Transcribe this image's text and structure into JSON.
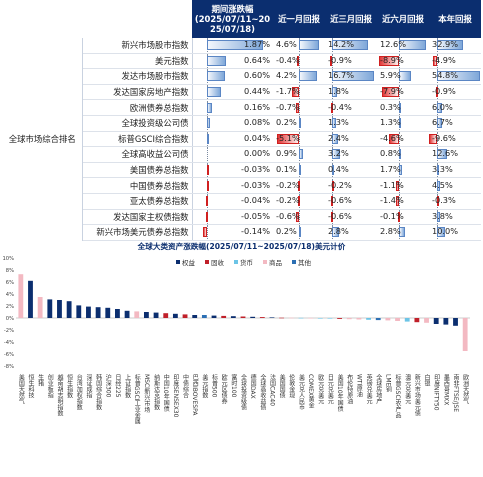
{
  "table": {
    "headers": {
      "period": "期间涨跌幅\n(2025/07/11~20\n25/07/18)",
      "m1": "近一月回报",
      "m3": "近三月回报",
      "m6": "近六月回报",
      "ytd": "本年回报"
    },
    "group_label": "全球市场综合排名",
    "rows": [
      {
        "name": "新兴市场股市指数",
        "period": "1.87%",
        "m1": "4.6%",
        "m3": "14.2%",
        "m6": "12.6%",
        "ytd": "32.9%"
      },
      {
        "name": "美元指数",
        "period": "0.64%",
        "m1": "-0.4%",
        "m3": "-0.9%",
        "m6": "-8.9%",
        "ytd": "-4.9%"
      },
      {
        "name": "发达市场股市指数",
        "period": "0.60%",
        "m1": "4.2%",
        "m3": "16.7%",
        "m6": "5.9%",
        "ytd": "54.8%"
      },
      {
        "name": "发达国家房地产指数",
        "period": "0.44%",
        "m1": "-1.7%",
        "m3": "1.8%",
        "m6": "-7.9%",
        "ytd": "-0.9%"
      },
      {
        "name": "欧洲债券总指数",
        "period": "0.16%",
        "m1": "-0.7%",
        "m3": "-0.4%",
        "m6": "0.3%",
        "ytd": "6.0%"
      },
      {
        "name": "全球投资级公司债",
        "period": "0.08%",
        "m1": "0.2%",
        "m3": "1.3%",
        "m6": "1.3%",
        "ytd": "6.7%"
      },
      {
        "name": "标普GSCI综合指数",
        "period": "0.04%",
        "m1": "-5.1%",
        "m3": "2.4%",
        "m6": "-4.6%",
        "ytd": "-9.6%"
      },
      {
        "name": "全球高收益公司债",
        "period": "0.00%",
        "m1": "0.9%",
        "m3": "3.2%",
        "m6": "0.8%",
        "ytd": "12.6%"
      },
      {
        "name": "美国债券总指数",
        "period": "-0.03%",
        "m1": "0.1%",
        "m3": "0.4%",
        "m6": "1.7%",
        "ytd": "3.3%"
      },
      {
        "name": "中国债券总指数",
        "period": "-0.03%",
        "m1": "-0.2%",
        "m3": "-0.2%",
        "m6": "-1.1%",
        "ytd": "4.5%"
      },
      {
        "name": "亚太债券总指数",
        "period": "-0.04%",
        "m1": "-0.2%",
        "m3": "-0.6%",
        "m6": "-1.4%",
        "ytd": "-0.3%"
      },
      {
        "name": "发达国家主权债指数",
        "period": "-0.05%",
        "m1": "-0.6%",
        "m3": "-0.6%",
        "m6": "-0.1%",
        "ytd": "3.8%"
      },
      {
        "name": "新兴市场美元债券总指数",
        "period": "-0.14%",
        "m1": "0.2%",
        "m3": "2.8%",
        "m6": "2.8%",
        "ytd": "10.0%"
      }
    ]
  },
  "chart_data": {
    "type": "bar",
    "title": "全球大类资产涨跌幅(2025/07/11~2025/07/18)美元计价",
    "ylim": [
      -8,
      10
    ],
    "yticks": [
      "10%",
      "8%",
      "6%",
      "4%",
      "2%",
      "0%",
      "-2%",
      "-4%",
      "-6%",
      "-8%"
    ],
    "legend": [
      {
        "name": "权益",
        "color": "#0b2e6f"
      },
      {
        "name": "固收",
        "color": "#c0202a"
      },
      {
        "name": "货币",
        "color": "#6cc4e6"
      },
      {
        "name": "商品",
        "color": "#f3b9c2"
      },
      {
        "name": "其他",
        "color": "#2c6fb3"
      }
    ],
    "bars": [
      {
        "label": "美国天然气",
        "value": 7.3,
        "cls": "商品"
      },
      {
        "label": "恒生科技",
        "value": 6.2,
        "cls": "权益"
      },
      {
        "label": "生猪",
        "value": 3.5,
        "cls": "商品"
      },
      {
        "label": "创业板指",
        "value": 3.1,
        "cls": "权益"
      },
      {
        "label": "越南胡志明指数",
        "value": 3.0,
        "cls": "权益"
      },
      {
        "label": "恒生指数",
        "value": 2.8,
        "cls": "权益"
      },
      {
        "label": "台湾加权指数",
        "value": 2.1,
        "cls": "权益"
      },
      {
        "label": "深证成指",
        "value": 1.9,
        "cls": "权益"
      },
      {
        "label": "韩国综合指数",
        "value": 1.8,
        "cls": "权益"
      },
      {
        "label": "沪深300",
        "value": 1.7,
        "cls": "权益"
      },
      {
        "label": "日经225",
        "value": 1.5,
        "cls": "权益"
      },
      {
        "label": "上证指数",
        "value": 1.2,
        "cls": "权益"
      },
      {
        "label": "标普GSCI工业金属",
        "value": 1.1,
        "cls": "商品"
      },
      {
        "label": "MSCI新兴市场",
        "value": 1.0,
        "cls": "权益"
      },
      {
        "label": "纳斯达克指数",
        "value": 0.9,
        "cls": "权益"
      },
      {
        "label": "中国10年国债",
        "value": 0.8,
        "cls": "固收"
      },
      {
        "label": "印度SENSEX30",
        "value": 0.7,
        "cls": "权益"
      },
      {
        "label": "中债综合",
        "value": 0.6,
        "cls": "固收"
      },
      {
        "label": "巴西IBOVESPA",
        "value": 0.5,
        "cls": "权益"
      },
      {
        "label": "美元指数",
        "value": 0.5,
        "cls": "其他"
      },
      {
        "label": "标普500",
        "value": 0.4,
        "cls": "权益"
      },
      {
        "label": "欧元区债券",
        "value": 0.35,
        "cls": "固收"
      },
      {
        "label": "富时100",
        "value": 0.3,
        "cls": "权益"
      },
      {
        "label": "全球投资级债",
        "value": 0.25,
        "cls": "固收"
      },
      {
        "label": "德国DAX",
        "value": 0.2,
        "cls": "权益"
      },
      {
        "label": "全球高收益债",
        "value": 0.15,
        "cls": "固收"
      },
      {
        "label": "法国CAC40",
        "value": 0.1,
        "cls": "权益"
      },
      {
        "label": "美国国债",
        "value": 0.05,
        "cls": "固收"
      },
      {
        "label": "伦敦金现",
        "value": 0.05,
        "cls": "商品"
      },
      {
        "label": "美元兑人民币",
        "value": 0.03,
        "cls": "货币"
      },
      {
        "label": "COMEX黄金",
        "value": 0.02,
        "cls": "商品"
      },
      {
        "label": "欧元兑美元",
        "value": -0.05,
        "cls": "货币"
      },
      {
        "label": "日元兑美元",
        "value": -0.1,
        "cls": "货币"
      },
      {
        "label": "美国10年国债",
        "value": -0.15,
        "cls": "固收"
      },
      {
        "label": "布伦特原油",
        "value": -0.2,
        "cls": "商品"
      },
      {
        "label": "WTI原油",
        "value": -0.25,
        "cls": "商品"
      },
      {
        "label": "英镑兑美元",
        "value": -0.3,
        "cls": "货币"
      },
      {
        "label": "全球房地产",
        "value": -0.35,
        "cls": "其他"
      },
      {
        "label": "LME铜",
        "value": -0.4,
        "cls": "商品"
      },
      {
        "label": "标普GSCI农产品",
        "value": -0.5,
        "cls": "商品"
      },
      {
        "label": "澳元兑美元",
        "value": -0.6,
        "cls": "货币"
      },
      {
        "label": "新兴市场美元债",
        "value": -0.7,
        "cls": "固收"
      },
      {
        "label": "白银",
        "value": -0.8,
        "cls": "商品"
      },
      {
        "label": "印度NIFTY50",
        "value": -1.0,
        "cls": "权益"
      },
      {
        "label": "墨西哥MXX",
        "value": -1.1,
        "cls": "权益"
      },
      {
        "label": "南非FTSE/JSE",
        "value": -1.3,
        "cls": "权益"
      },
      {
        "label": "欧洲天然气",
        "value": -5.5,
        "cls": "商品"
      }
    ]
  }
}
